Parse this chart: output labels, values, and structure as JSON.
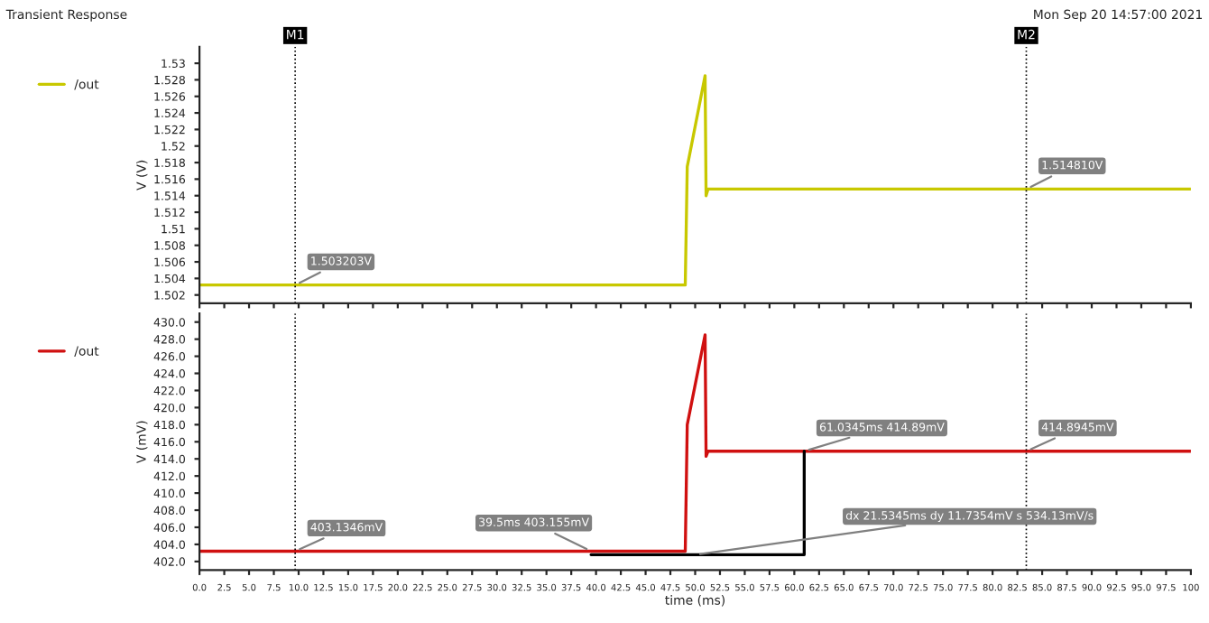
{
  "chart_data": [
    {
      "type": "line",
      "title": "Transient Response",
      "ylabel": "V (V)",
      "xlim": [
        0,
        100
      ],
      "ylim": [
        1.501,
        1.532
      ],
      "xticks": [
        0,
        2.5,
        5,
        7.5,
        10,
        12.5,
        15,
        17.5,
        20,
        22.5,
        25,
        27.5,
        30,
        32.5,
        35,
        37.5,
        40,
        42.5,
        45,
        47.5,
        50,
        52.5,
        55,
        57.5,
        60,
        62.5,
        65,
        67.5,
        70,
        72.5,
        75,
        77.5,
        80,
        82.5,
        85,
        87.5,
        90,
        92.5,
        95,
        97.5,
        100
      ],
      "yticks": [
        1.502,
        1.504,
        1.506,
        1.508,
        1.51,
        1.512,
        1.514,
        1.516,
        1.518,
        1.52,
        1.522,
        1.524,
        1.526,
        1.528,
        1.53
      ],
      "tick_labels": "y",
      "grid": false,
      "legend": "left",
      "line_style": "solid",
      "marker": "none",
      "series": [
        {
          "name": "/out",
          "color": "#c8c800",
          "x": [
            0,
            9.65,
            49.0,
            49.2,
            51.0,
            51.1,
            51.3,
            100
          ],
          "values": [
            1.5032,
            1.5032,
            1.5032,
            1.5175,
            1.5285,
            1.514,
            1.5148,
            1.5148
          ]
        }
      ],
      "ref_lines": [
        {
          "axis": "x",
          "value": 9.65,
          "label": "M1",
          "color": "#000000",
          "line_style": "dotted"
        },
        {
          "axis": "x",
          "value": 83.4,
          "label": "M2",
          "color": "#000000",
          "line_style": "dotted"
        }
      ],
      "annotations": [
        "Mon Sep 20 14:57:00 2021",
        {
          "text": "1.503203V",
          "x": 9.65,
          "y": 1.5032
        },
        {
          "text": "1.514810V",
          "x": 83.4,
          "y": 1.5148
        }
      ]
    },
    {
      "type": "line",
      "xlabel": "time (ms)",
      "ylabel": "V (mV)",
      "xlim": [
        0,
        100
      ],
      "ylim": [
        401,
        431
      ],
      "xticks": [
        {
          "value": 0,
          "label": "0.0"
        },
        {
          "value": 2.5,
          "label": "2.5"
        },
        {
          "value": 5,
          "label": "5.0"
        },
        {
          "value": 7.5,
          "label": "7.5"
        },
        {
          "value": 10,
          "label": "10.0"
        },
        {
          "value": 12.5,
          "label": "12.5"
        },
        {
          "value": 15,
          "label": "15.0"
        },
        {
          "value": 17.5,
          "label": "17.5"
        },
        {
          "value": 20,
          "label": "20.0"
        },
        {
          "value": 22.5,
          "label": "22.5"
        },
        {
          "value": 25,
          "label": "25.0"
        },
        {
          "value": 27.5,
          "label": "27.5"
        },
        {
          "value": 30,
          "label": "30.0"
        },
        {
          "value": 32.5,
          "label": "32.5"
        },
        {
          "value": 35,
          "label": "35.0"
        },
        {
          "value": 37.5,
          "label": "37.5"
        },
        {
          "value": 40,
          "label": "40.0"
        },
        {
          "value": 42.5,
          "label": "42.5"
        },
        {
          "value": 45,
          "label": "45.0"
        },
        {
          "value": 47.5,
          "label": "47.5"
        },
        {
          "value": 50,
          "label": "50.0"
        },
        {
          "value": 52.5,
          "label": "52.5"
        },
        {
          "value": 55,
          "label": "55.0"
        },
        {
          "value": 57.5,
          "label": "57.5"
        },
        {
          "value": 60,
          "label": "60.0"
        },
        {
          "value": 62.5,
          "label": "62.5"
        },
        {
          "value": 65,
          "label": "65.0"
        },
        {
          "value": 67.5,
          "label": "67.5"
        },
        {
          "value": 70,
          "label": "70.0"
        },
        {
          "value": 72.5,
          "label": "72.5"
        },
        {
          "value": 75,
          "label": "75.0"
        },
        {
          "value": 77.5,
          "label": "77.5"
        },
        {
          "value": 80,
          "label": "80.0"
        },
        {
          "value": 82.5,
          "label": "82.5"
        },
        {
          "value": 85,
          "label": "85.0"
        },
        {
          "value": 87.5,
          "label": "87.5"
        },
        {
          "value": 90,
          "label": "90.0"
        },
        {
          "value": 92.5,
          "label": "92.5"
        },
        {
          "value": 95,
          "label": "95.0"
        },
        {
          "value": 97.5,
          "label": "97.5"
        },
        {
          "value": 100,
          "label": "100"
        }
      ],
      "yticks": [
        {
          "value": 402,
          "label": "402.0"
        },
        {
          "value": 404,
          "label": "404.0"
        },
        {
          "value": 406,
          "label": "406.0"
        },
        {
          "value": 408,
          "label": "408.0"
        },
        {
          "value": 410,
          "label": "410.0"
        },
        {
          "value": 412,
          "label": "412.0"
        },
        {
          "value": 414,
          "label": "414.0"
        },
        {
          "value": 416,
          "label": "416.0"
        },
        {
          "value": 418,
          "label": "418.0"
        },
        {
          "value": 420,
          "label": "420.0"
        },
        {
          "value": 422,
          "label": "422.0"
        },
        {
          "value": 424,
          "label": "424.0"
        },
        {
          "value": 426,
          "label": "426.0"
        },
        {
          "value": 428,
          "label": "428.0"
        },
        {
          "value": 430,
          "label": "430.0"
        }
      ],
      "grid": false,
      "legend": "left",
      "line_style": "solid",
      "marker": "none",
      "series": [
        {
          "name": "/out",
          "color": "#d01010",
          "x": [
            0,
            9.65,
            49.0,
            49.2,
            51.0,
            51.1,
            51.3,
            100
          ],
          "values": [
            403.2,
            403.2,
            403.2,
            418,
            428.5,
            414.3,
            414.9,
            414.9
          ]
        },
        {
          "color": "#000000",
          "x": [
            39.5,
            61,
            61
          ],
          "values": [
            402.8,
            402.8,
            414.9
          ]
        }
      ],
      "ref_lines": [
        {
          "axis": "x",
          "value": 9.65,
          "color": "#000000",
          "line_style": "dotted"
        },
        {
          "axis": "x",
          "value": 83.4,
          "color": "#000000",
          "line_style": "dotted"
        }
      ],
      "annotations": [
        {
          "text": "403.1346mV",
          "x": 9.65,
          "y": 403.2
        },
        {
          "text": "39.5ms 403.155mV",
          "x": 39.5,
          "y": 403.2
        },
        {
          "text": "61.0345ms 414.89mV",
          "x": 61,
          "y": 414.9
        },
        {
          "text": "dx 21.5345ms dy 11.7354mV s 534.13mV/s",
          "x": 50,
          "y": 402.8
        },
        {
          "text": "414.8945mV",
          "x": 83.4,
          "y": 414.9
        }
      ]
    }
  ]
}
